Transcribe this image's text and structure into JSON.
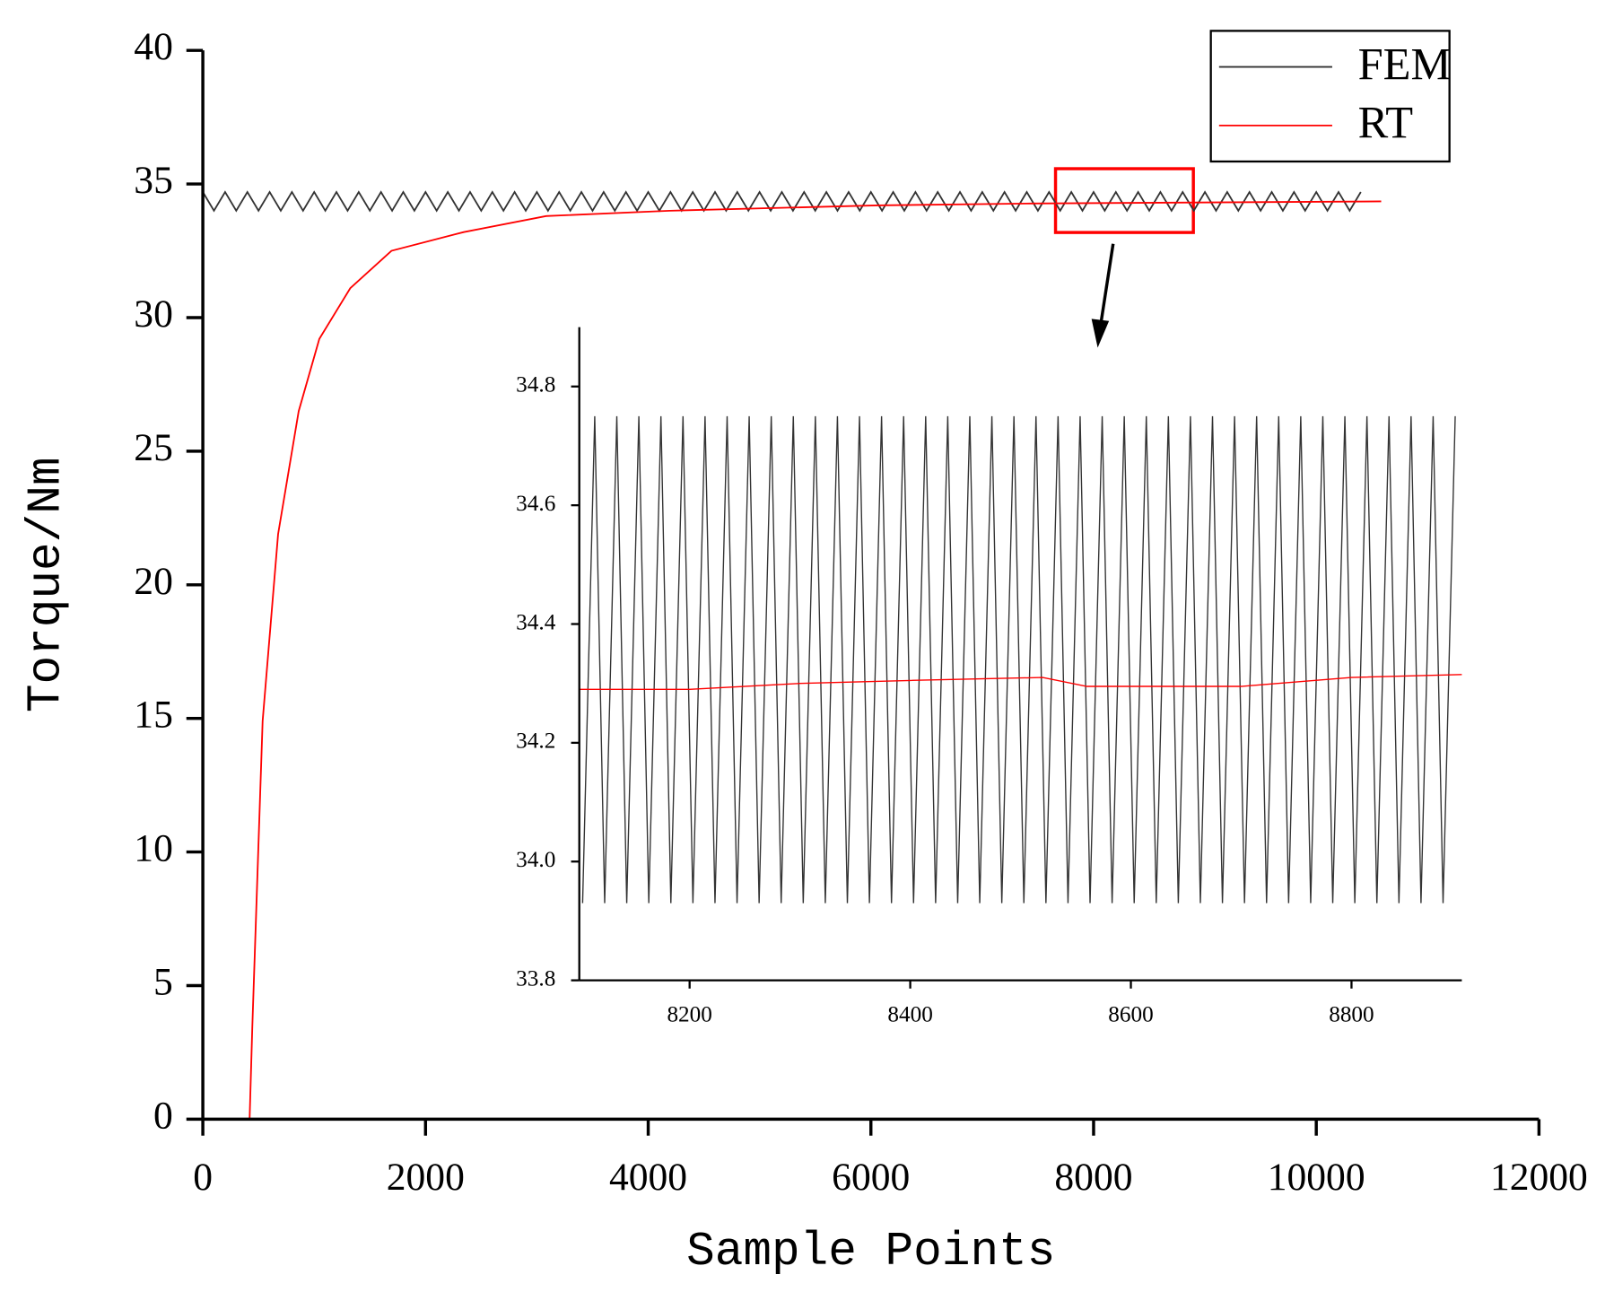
{
  "chart_data": [
    {
      "type": "line",
      "x_label": "Sample Points",
      "y_label": "Torque/Nm",
      "xlim": [
        0,
        12000
      ],
      "xticks": [
        0,
        2000,
        4000,
        6000,
        8000,
        10000,
        12000
      ],
      "ylim": [
        0,
        40
      ],
      "yticks": [
        0,
        5,
        10,
        15,
        20,
        25,
        30,
        35,
        40
      ],
      "legend": "upper right",
      "series": [
        {
          "name": "FEM",
          "color": "#333333",
          "x": [
            0,
            100,
            200,
            300,
            400,
            500,
            600,
            700,
            800,
            900,
            1000,
            1100,
            1200,
            1300,
            1400,
            1500,
            1600,
            1700,
            1800,
            1900,
            2000,
            2100,
            2200,
            2300,
            2400,
            2500,
            2600,
            2700,
            2800,
            2900,
            3000,
            3100,
            3200,
            3300,
            3400,
            3500,
            3600,
            3700,
            3800,
            3900,
            4000,
            4100,
            4200,
            4300,
            4400,
            4500,
            4600,
            4700,
            4800,
            4900,
            5000,
            5100,
            5200,
            5300,
            5400,
            5500,
            5600,
            5700,
            5800,
            5900,
            6000,
            6100,
            6200,
            6300,
            6400,
            6500,
            6600,
            6700,
            6800,
            6900,
            7000,
            7100,
            7200,
            7300,
            7400,
            7500,
            7600,
            7700,
            7800,
            7900,
            8000,
            8100,
            8200,
            8300,
            8400,
            8500,
            8600,
            8700,
            8800,
            8900,
            9000,
            9100,
            9200,
            9300,
            9400,
            9500,
            9600,
            9700,
            9800,
            9900,
            10000,
            10100,
            10200,
            10300,
            10400
          ],
          "values": [
            34.7,
            34,
            34.7,
            34,
            34.7,
            34,
            34.7,
            34,
            34.7,
            34,
            34.7,
            34,
            34.7,
            34,
            34.7,
            34,
            34.7,
            34,
            34.7,
            34,
            34.7,
            34,
            34.7,
            34,
            34.7,
            34,
            34.7,
            34,
            34.7,
            34,
            34.7,
            34,
            34.7,
            34,
            34.7,
            34,
            34.7,
            34,
            34.7,
            34,
            34.7,
            34,
            34.7,
            34,
            34.7,
            34,
            34.7,
            34,
            34.7,
            34,
            34.7,
            34,
            34.7,
            34,
            34.7,
            34,
            34.7,
            34,
            34.7,
            34,
            34.7,
            34,
            34.7,
            34,
            34.7,
            34,
            34.7,
            34,
            34.7,
            34,
            34.7,
            34,
            34.7,
            34,
            34.7,
            34,
            34.7,
            34,
            34.7,
            34,
            34.7,
            34,
            34.7,
            34,
            34.7,
            34,
            34.7,
            34,
            34.7,
            34,
            34.7,
            34,
            34.7,
            34,
            34.7,
            34,
            34.7,
            34,
            34.7,
            34,
            34.7,
            34,
            34.7,
            34,
            34.7
          ]
        },
        {
          "name": "RT",
          "color": "#ff0000",
          "x": [
            0,
            420,
            444,
            537,
            676,
            861,
            1046,
            1324,
            1694,
            2343,
            3083,
            4194,
            6046,
            7435,
            10583
          ],
          "values": [
            0,
            0,
            3.4,
            14.9,
            21.9,
            26.5,
            29.2,
            31.1,
            32.5,
            33.2,
            33.8,
            34.0,
            34.2,
            34.27,
            34.35
          ]
        }
      ]
    },
    {
      "type": "line",
      "xlim": [
        8100,
        8900
      ],
      "xticks": [
        8200,
        8400,
        8600,
        8800
      ],
      "ylim": [
        33.8,
        34.9
      ],
      "yticks": [
        33.8,
        {
          "value": 34,
          "label": "34.0"
        },
        34.2,
        34.4,
        34.6,
        34.8
      ],
      "series": [
        {
          "color": "#333333",
          "x": [
            8103,
            8114,
            8123,
            8134,
            8143,
            8154,
            8163,
            8174,
            8183,
            8194,
            8203,
            8214,
            8223,
            8234,
            8243,
            8254,
            8263,
            8274,
            8283,
            8294,
            8303,
            8314,
            8323,
            8334,
            8343,
            8354,
            8363,
            8374,
            8383,
            8394,
            8403,
            8414,
            8423,
            8434,
            8443,
            8454,
            8463,
            8474,
            8483,
            8494,
            8503,
            8514,
            8523,
            8534,
            8543,
            8554,
            8563,
            8574,
            8583,
            8594,
            8603,
            8614,
            8623,
            8634,
            8643,
            8654,
            8663,
            8674,
            8683,
            8694,
            8703,
            8714,
            8723,
            8734,
            8743,
            8754,
            8763,
            8774,
            8783,
            8794,
            8803,
            8814,
            8823,
            8834,
            8843,
            8854,
            8863,
            8874,
            8883,
            8894
          ],
          "values": [
            33.93,
            34.75,
            33.93,
            34.75,
            33.93,
            34.75,
            33.93,
            34.75,
            33.93,
            34.75,
            33.93,
            34.75,
            33.93,
            34.75,
            33.93,
            34.75,
            33.93,
            34.75,
            33.93,
            34.75,
            33.93,
            34.75,
            33.93,
            34.75,
            33.93,
            34.75,
            33.93,
            34.75,
            33.93,
            34.75,
            33.93,
            34.75,
            33.93,
            34.75,
            33.93,
            34.75,
            33.93,
            34.75,
            33.93,
            34.75,
            33.93,
            34.75,
            33.93,
            34.75,
            33.93,
            34.75,
            33.93,
            34.75,
            33.93,
            34.75,
            33.93,
            34.75,
            33.93,
            34.75,
            33.93,
            34.75,
            33.93,
            34.75,
            33.93,
            34.75,
            33.93,
            34.75,
            33.93,
            34.75,
            33.93,
            34.75,
            33.93,
            34.75,
            33.93,
            34.75,
            33.93,
            34.75,
            33.93,
            34.75,
            33.93,
            34.75,
            33.93,
            34.75,
            33.93,
            34.75
          ]
        },
        {
          "color": "#ff0000",
          "x": [
            8100,
            8200,
            8300,
            8400,
            8520,
            8560,
            8700,
            8800,
            8900
          ],
          "values": [
            34.29,
            34.29,
            34.3,
            34.305,
            34.31,
            34.295,
            34.295,
            34.31,
            34.315
          ]
        }
      ]
    }
  ]
}
